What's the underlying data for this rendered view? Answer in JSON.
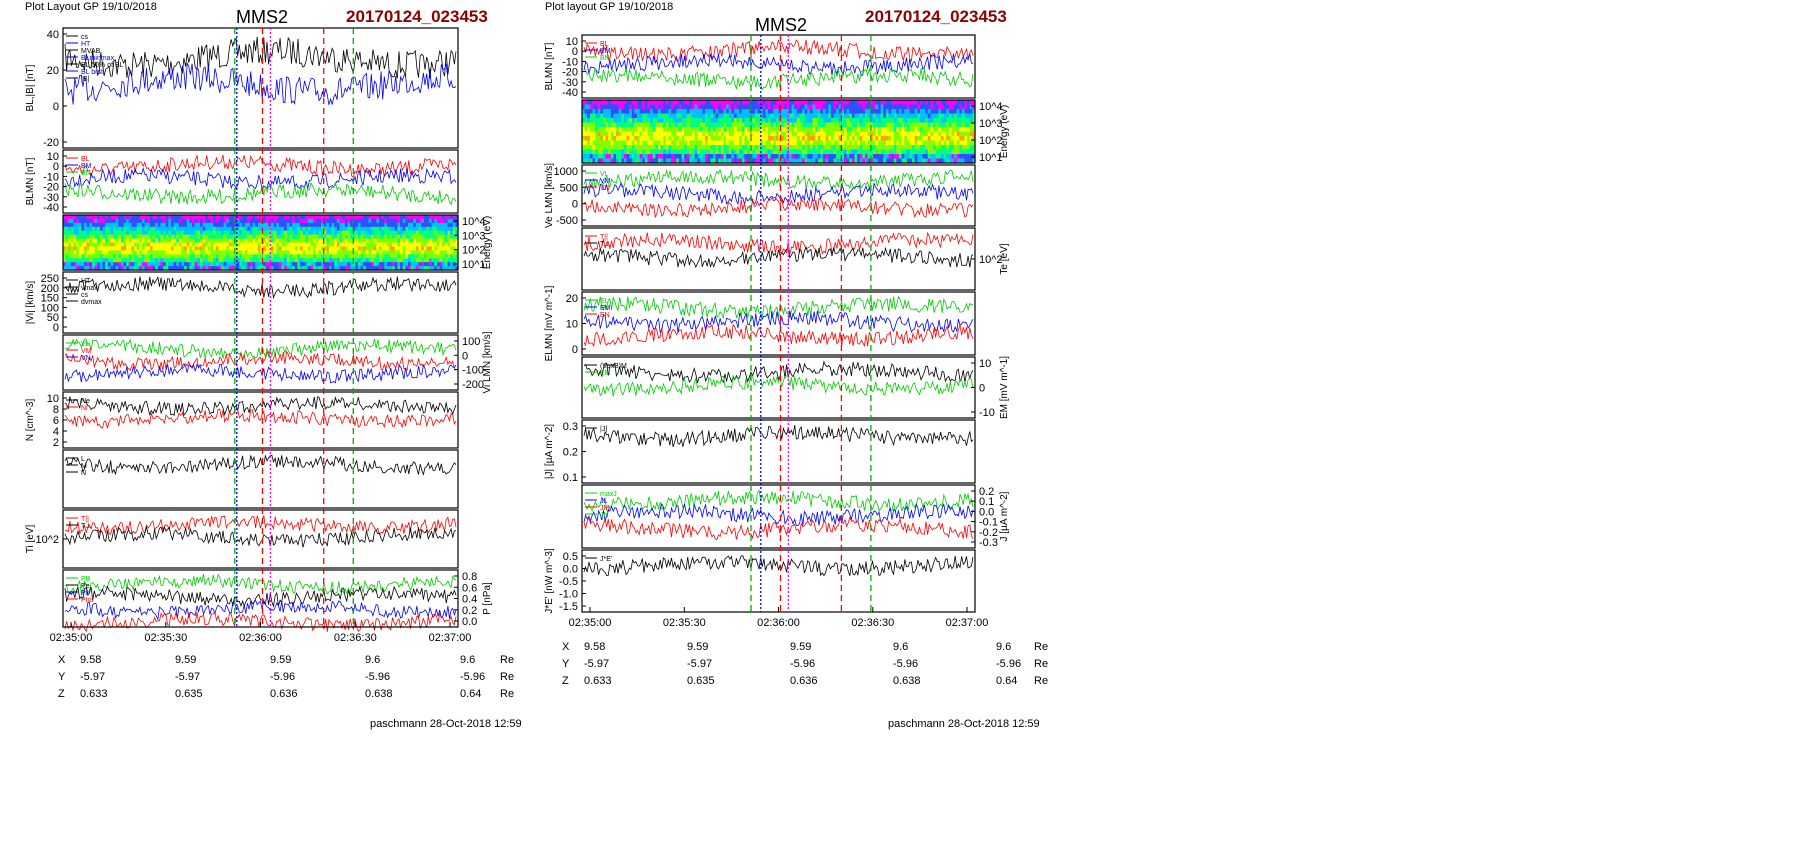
{
  "left": {
    "header": "Plot Layout GP 19/10/2018",
    "title": "MMS2",
    "event_id": "20170124_023453",
    "footer": "paschmann 28-Oct-2018 12:59",
    "time_ticks": [
      "02:35:00",
      "02:35:30",
      "02:36:00",
      "02:36:30",
      "02:37:00"
    ],
    "coords": {
      "unit": "Re",
      "rows": [
        {
          "label": "X",
          "values": [
            "9.58",
            "9.59",
            "9.59",
            "9.6",
            "9.6"
          ]
        },
        {
          "label": "Y",
          "values": [
            "-5.97",
            "-5.97",
            "-5.96",
            "-5.96",
            "-5.96"
          ]
        },
        {
          "label": "Z",
          "values": [
            "0.633",
            "0.635",
            "0.636",
            "0.638",
            "0.64"
          ]
        }
      ]
    },
    "markers": [
      {
        "t": 0.435,
        "color": "#00aa00",
        "dash": "6,4"
      },
      {
        "t": 0.44,
        "color": "#0000ff",
        "dash": "2,2"
      },
      {
        "t": 0.505,
        "color": "#ff0000",
        "dash": "6,4"
      },
      {
        "t": 0.525,
        "color": "#ff00ff",
        "dash": "2,2"
      },
      {
        "t": 0.66,
        "color": "#ff0000",
        "dash": "6,4"
      },
      {
        "t": 0.735,
        "color": "#00aa00",
        "dash": "6,4"
      }
    ],
    "panels": [
      {
        "ylabel": "BL,|B| [nT]",
        "side": "left",
        "ticks": [
          "40",
          "20",
          "0",
          "-20"
        ],
        "legend": [
          "cs",
          "HT",
          "MVAB",
          "BLminmax",
          "BL 50% of BL",
          "BL brst",
          "|B|"
        ]
      },
      {
        "ylabel": "BLMN [nT]",
        "side": "left",
        "ticks": [
          "10",
          "0",
          "-10",
          "-20",
          "-30",
          "-40"
        ],
        "legend": [
          "BL",
          "BM",
          "BN"
        ]
      },
      {
        "ylabel": "Energy (eV)",
        "side": "right",
        "ticks": [
          "10^4",
          "10^3",
          "10^2",
          "10^1"
        ],
        "legend": []
      },
      {
        "ylabel": "|Vi| [km/s]",
        "side": "left",
        "ticks": [
          "250",
          "200",
          "150",
          "100",
          "50",
          "0"
        ],
        "legend": [
          "HT",
          "vmax",
          "cs",
          "dvmax"
        ]
      },
      {
        "ylabel": "Vi LMN [km/s]",
        "side": "right",
        "ticks": [
          "100",
          "0",
          "-100",
          "-200"
        ],
        "legend": [
          "VL",
          "VM",
          "VN"
        ]
      },
      {
        "ylabel": "N [cm^-3]",
        "side": "left",
        "ticks": [
          "10",
          "8",
          "6",
          "4",
          "2"
        ],
        "legend": [
          "Ne",
          "Ni"
        ]
      },
      {
        "ylabel": "",
        "side": "right",
        "ticks": [],
        "legend": [
          "L",
          "M",
          "N"
        ]
      },
      {
        "ylabel": "Ti [eV]",
        "side": "left",
        "ticks": [
          "10^2"
        ],
        "legend": [
          "T||",
          "T⊥"
        ]
      },
      {
        "ylabel": "P [nPa]",
        "side": "right",
        "ticks": [
          "0.8",
          "0.6",
          "0.4",
          "0.2",
          "0.0"
        ],
        "legend": [
          "PB",
          "Pe",
          "Pi",
          "Ptot"
        ]
      }
    ]
  },
  "right": {
    "header": "Plot layout GP 19/10/2018",
    "title": "MMS2",
    "event_id": "20170124_023453",
    "footer": "paschmann 28-Oct-2018 12:59",
    "time_ticks": [
      "02:35:00",
      "02:35:30",
      "02:36:00",
      "02:36:30",
      "02:37:00"
    ],
    "coords": {
      "unit": "Re",
      "rows": [
        {
          "label": "X",
          "values": [
            "9.58",
            "9.59",
            "9.59",
            "9.6",
            "9.6"
          ]
        },
        {
          "label": "Y",
          "values": [
            "-5.97",
            "-5.97",
            "-5.96",
            "-5.96",
            "-5.96"
          ]
        },
        {
          "label": "Z",
          "values": [
            "0.633",
            "0.635",
            "0.636",
            "0.638",
            "0.64"
          ]
        }
      ]
    },
    "markers": [
      {
        "t": 0.43,
        "color": "#00aa00",
        "dash": "6,4"
      },
      {
        "t": 0.455,
        "color": "#0000ff",
        "dash": "2,2"
      },
      {
        "t": 0.505,
        "color": "#ff0000",
        "dash": "6,4"
      },
      {
        "t": 0.525,
        "color": "#ff00ff",
        "dash": "2,2"
      },
      {
        "t": 0.66,
        "color": "#ff0000",
        "dash": "6,4"
      },
      {
        "t": 0.735,
        "color": "#00aa00",
        "dash": "6,4"
      }
    ],
    "panels": [
      {
        "ylabel": "BLMN [nT]",
        "side": "left",
        "ticks": [
          "10",
          "0",
          "-10",
          "-20",
          "-30",
          "-40"
        ],
        "legend": [
          "BL",
          "BM",
          "BN"
        ]
      },
      {
        "ylabel": "Energy (eV)",
        "side": "right",
        "ticks": [
          "10^4",
          "10^3",
          "10^2",
          "10^1"
        ],
        "legend": []
      },
      {
        "ylabel": "Ve LMN [km/s]",
        "side": "left",
        "ticks": [
          "1000",
          "500",
          "0",
          "-500"
        ],
        "legend": [
          "VL",
          "VM",
          "VN"
        ]
      },
      {
        "ylabel": "Te [eV]",
        "side": "right",
        "ticks": [
          "10^2"
        ],
        "legend": [
          "T||",
          "T⊥"
        ]
      },
      {
        "ylabel": "ELMN [mV m^-1]",
        "side": "left",
        "ticks": [
          "20",
          "10",
          "0"
        ],
        "legend": [
          "EL",
          "EM",
          "EN"
        ]
      },
      {
        "ylabel": "EM [mV m^-1]",
        "side": "right",
        "ticks": [
          "10",
          "0",
          "-10"
        ],
        "legend": [
          "(VexB)M",
          "EM"
        ]
      },
      {
        "ylabel": "|J| [µA m^-2]",
        "side": "left",
        "ticks": [
          "0.3",
          "0.2",
          "0.1"
        ],
        "legend": [
          "|J|"
        ]
      },
      {
        "ylabel": "J [µA m^-2]",
        "side": "right",
        "ticks": [
          "0.2",
          "0.1",
          "0.0",
          "-0.1",
          "-0.2",
          "-0.3"
        ],
        "legend": [
          "maxJ",
          "JL",
          "JM",
          "JN"
        ]
      },
      {
        "ylabel": "J*E' [nW m^-3]",
        "side": "left",
        "ticks": [
          "0.5",
          "0.0",
          "-0.5",
          "-1.0",
          "-1.5"
        ],
        "legend": [
          "J*E'"
        ]
      }
    ]
  },
  "colors": {
    "red": "#ff0000",
    "green": "#00cc00",
    "blue": "#0000ff",
    "black": "#000000",
    "magenta": "#ff00ff",
    "title_red": "#8b0000"
  }
}
